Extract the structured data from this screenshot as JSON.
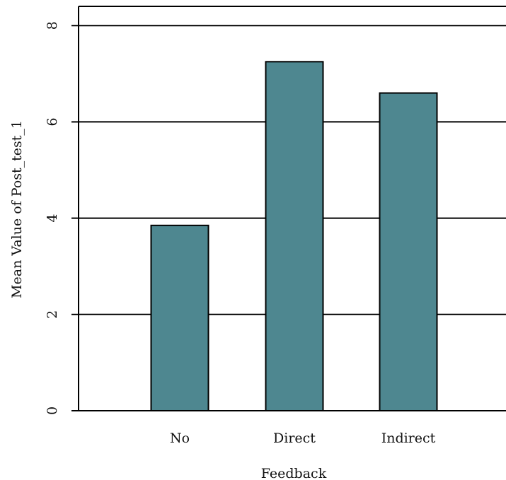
{
  "chart_data": {
    "type": "bar",
    "categories": [
      "No",
      "Direct",
      "Indirect"
    ],
    "values": [
      3.85,
      7.25,
      6.6
    ],
    "xlabel": "Feedback",
    "ylabel": "Mean Value of Post_test_1",
    "ylim": [
      0,
      8.4
    ],
    "yticks": [
      0,
      2,
      4,
      6,
      8
    ],
    "ytick_labels": [
      "0",
      "2",
      "4",
      "6",
      "8"
    ],
    "grid": true,
    "colors": {
      "bar_fill": "#4e8790",
      "bar_stroke": "#000000",
      "grid": "#000000",
      "axis": "#000000"
    }
  }
}
